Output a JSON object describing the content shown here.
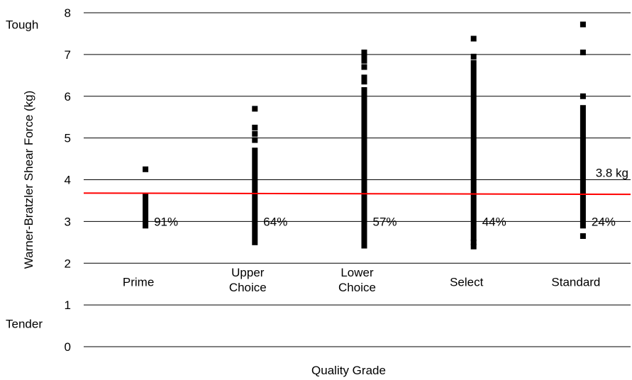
{
  "chart_data": {
    "type": "scatter",
    "title": "",
    "xlabel": "Quality Grade",
    "ylabel": "Warner-Bratzler Shear Force (kg)",
    "ylim": [
      0,
      8
    ],
    "yticks": [
      0,
      1,
      2,
      3,
      4,
      5,
      6,
      7,
      8
    ],
    "grid": "horizontal",
    "axis_annotations": {
      "top": "Tough",
      "bottom": "Tender"
    },
    "colors": {
      "points": "#000000",
      "threshold": "#ff0000",
      "grid": "#000000"
    },
    "threshold": {
      "label": "3.8 kg",
      "y_start": 3.68,
      "y_end": 3.65
    },
    "categories": [
      {
        "name": "Prime",
        "label_lines": [
          "Prime"
        ],
        "percent_label": "91%",
        "range": [
          2.9,
          3.6
        ],
        "outliers": [
          4.25
        ]
      },
      {
        "name": "Upper Choice",
        "label_lines": [
          "Upper",
          "Choice"
        ],
        "percent_label": "64%",
        "range": [
          2.5,
          4.7
        ],
        "outliers": [
          4.95,
          5.1,
          5.25,
          5.7
        ]
      },
      {
        "name": "Lower Choice",
        "label_lines": [
          "Lower",
          "Choice"
        ],
        "percent_label": "57%",
        "range": [
          2.42,
          6.15
        ],
        "outliers": [
          6.35,
          6.45,
          6.7,
          6.85,
          6.95,
          7.05
        ]
      },
      {
        "name": "Select",
        "label_lines": [
          "Select"
        ],
        "percent_label": "44%",
        "range": [
          2.6,
          6.8
        ],
        "outliers": [
          2.4,
          2.5,
          6.95,
          7.38
        ]
      },
      {
        "name": "Standard",
        "label_lines": [
          "Standard"
        ],
        "percent_label": "24%",
        "range": [
          2.9,
          5.72
        ],
        "outliers": [
          2.65,
          6.0,
          7.05,
          7.72
        ]
      }
    ]
  }
}
